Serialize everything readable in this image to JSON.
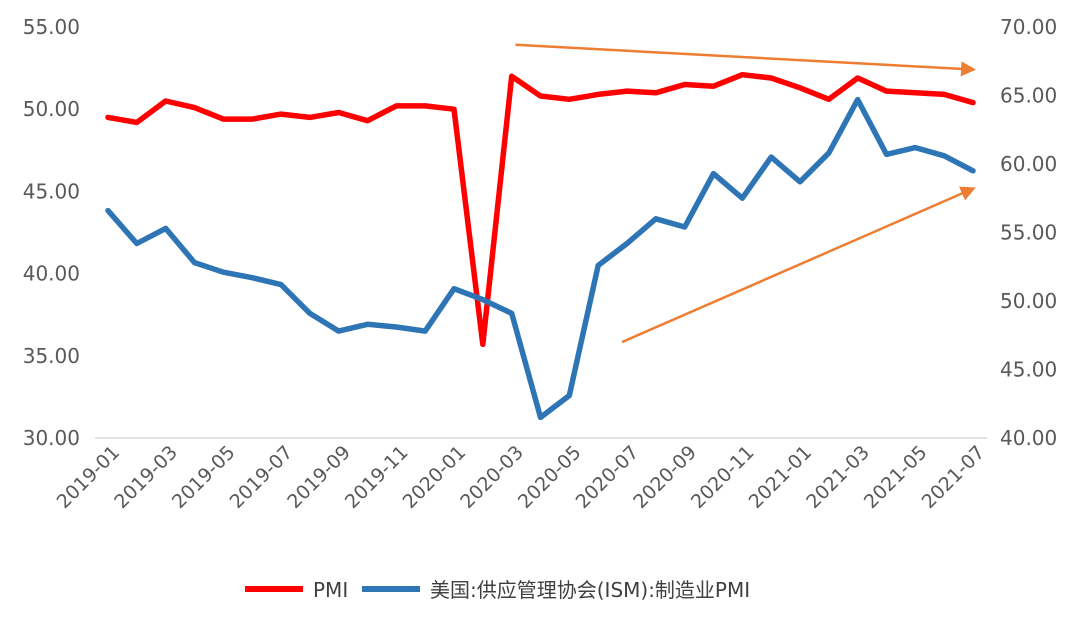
{
  "chart_data": {
    "type": "line",
    "title": "",
    "x": [
      "2019-01",
      "2019-02",
      "2019-03",
      "2019-04",
      "2019-05",
      "2019-06",
      "2019-07",
      "2019-08",
      "2019-09",
      "2019-10",
      "2019-11",
      "2019-12",
      "2020-01",
      "2020-02",
      "2020-03",
      "2020-04",
      "2020-05",
      "2020-06",
      "2020-07",
      "2020-08",
      "2020-09",
      "2020-10",
      "2020-11",
      "2020-12",
      "2021-01",
      "2021-02",
      "2021-03",
      "2021-04",
      "2021-05",
      "2021-06",
      "2021-07"
    ],
    "x_tick_labels": [
      "2019-01",
      "2019-03",
      "2019-05",
      "2019-07",
      "2019-09",
      "2019-11",
      "2020-01",
      "2020-03",
      "2020-05",
      "2020-07",
      "2020-09",
      "2020-11",
      "2021-01",
      "2021-03",
      "2021-05",
      "2021-07"
    ],
    "y_left": {
      "lim": [
        30,
        55
      ],
      "ticks": [
        "30.00",
        "35.00",
        "40.00",
        "45.00",
        "50.00",
        "55.00"
      ]
    },
    "y_right": {
      "lim": [
        40,
        70
      ],
      "ticks": [
        "40.00",
        "45.00",
        "50.00",
        "55.00",
        "60.00",
        "65.00",
        "70.00"
      ]
    },
    "grid": false,
    "legend_position": "bottom",
    "series": [
      {
        "name": "PMI",
        "axis": "left",
        "color": "#ff0000",
        "values": [
          49.5,
          49.2,
          50.5,
          50.1,
          49.4,
          49.4,
          49.7,
          49.5,
          49.8,
          49.3,
          50.2,
          50.2,
          50.0,
          35.7,
          52.0,
          50.8,
          50.6,
          50.9,
          51.1,
          51.0,
          51.5,
          51.4,
          52.1,
          51.9,
          51.3,
          50.6,
          51.9,
          51.1,
          51.0,
          50.9,
          50.4
        ]
      },
      {
        "name": "美国:供应管理协会(ISM):制造业PMI",
        "axis": "right",
        "color": "#2e75b6",
        "values": [
          56.6,
          54.2,
          55.3,
          52.8,
          52.1,
          51.7,
          51.2,
          49.1,
          47.8,
          48.3,
          48.1,
          47.8,
          50.9,
          50.1,
          49.1,
          41.5,
          43.1,
          52.6,
          54.2,
          56.0,
          55.4,
          59.3,
          57.5,
          60.5,
          58.7,
          60.8,
          64.7,
          60.7,
          61.2,
          60.6,
          59.5
        ]
      }
    ],
    "annotations": [
      {
        "type": "arrow",
        "color": "#ed7d31",
        "from": {
          "x": "2020-04",
          "y_right": 68.7
        },
        "to": {
          "x": "2021-07",
          "y_right": 66.9
        }
      },
      {
        "type": "arrow",
        "color": "#ed7d31",
        "from": {
          "x": "2020-07",
          "y_right": 47.0
        },
        "to": {
          "x": "2021-07",
          "y_right": 58.2
        }
      }
    ]
  }
}
